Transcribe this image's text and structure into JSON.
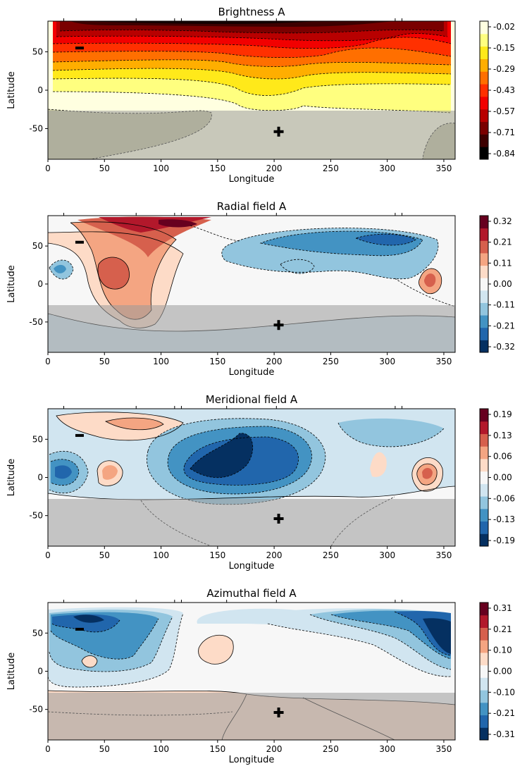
{
  "chart_data": [
    {
      "type": "heatmap",
      "title": "Brightness A",
      "xlabel": "Longitude",
      "ylabel": "Latitude",
      "xlim": [
        0,
        360
      ],
      "ylim": [
        -90,
        90
      ],
      "xticks": [
        0,
        50,
        100,
        150,
        200,
        250,
        300,
        350
      ],
      "yticks": [
        -50,
        0,
        50
      ],
      "colormap": "hot",
      "colorbar_ticks": [
        "-0.02",
        "-0.15",
        "-0.29",
        "-0.43",
        "-0.57",
        "-0.71",
        "-0.84"
      ],
      "colorbar_colors": [
        "#000000",
        "#3d0000",
        "#7a0000",
        "#b80000",
        "#f20000",
        "#ff3000",
        "#ff6f00",
        "#ffae00",
        "#ffe91a",
        "#ffff7f",
        "#ffffe0"
      ],
      "masked_below_latitude": -27,
      "mask_color": "#9a9a9a",
      "markers": [
        {
          "symbol": "−",
          "lon": 28,
          "lat": 55
        },
        {
          "symbol": "+",
          "lon": 204,
          "lat": -54
        }
      ],
      "top_tick_longitudes": [
        14,
        78,
        112,
        118,
        158,
        202,
        307,
        313
      ]
    },
    {
      "type": "heatmap",
      "title": "Radial field A",
      "xlabel": "Longitude",
      "ylabel": "Latitude",
      "xlim": [
        0,
        360
      ],
      "ylim": [
        -90,
        90
      ],
      "xticks": [
        0,
        50,
        100,
        150,
        200,
        250,
        300,
        350
      ],
      "yticks": [
        -50,
        0,
        50
      ],
      "colormap": "RdBu_r",
      "colorbar_ticks": [
        "0.32",
        "0.21",
        "0.11",
        "0.00",
        "-0.11",
        "-0.21",
        "-0.32"
      ],
      "colorbar_colors": [
        "#67001f",
        "#b2182b",
        "#d6604d",
        "#f4a582",
        "#fddbc7",
        "#f7f7f7",
        "#d1e5f0",
        "#92c5de",
        "#4393c3",
        "#2166ac",
        "#053061"
      ],
      "masked_below_latitude": -27,
      "mask_color": "#9a9a9a",
      "markers": [
        {
          "symbol": "−",
          "lon": 28,
          "lat": 55
        },
        {
          "symbol": "+",
          "lon": 204,
          "lat": -54
        }
      ],
      "top_tick_longitudes": [
        14,
        78,
        112,
        118,
        158,
        202,
        307,
        313
      ]
    },
    {
      "type": "heatmap",
      "title": "Meridional field A",
      "xlabel": "Longitude",
      "ylabel": "Latitude",
      "xlim": [
        0,
        360
      ],
      "ylim": [
        -90,
        90
      ],
      "xticks": [
        0,
        50,
        100,
        150,
        200,
        250,
        300,
        350
      ],
      "yticks": [
        -50,
        0,
        50
      ],
      "colormap": "RdBu_r",
      "colorbar_ticks": [
        "0.19",
        "0.13",
        "0.06",
        "0.00",
        "-0.06",
        "-0.13",
        "-0.19"
      ],
      "colorbar_colors": [
        "#67001f",
        "#b2182b",
        "#d6604d",
        "#f4a582",
        "#fddbc7",
        "#f7f7f7",
        "#d1e5f0",
        "#92c5de",
        "#4393c3",
        "#2166ac",
        "#053061"
      ],
      "masked_below_latitude": -27,
      "mask_color": "#9a9a9a",
      "markers": [
        {
          "symbol": "−",
          "lon": 28,
          "lat": 55
        },
        {
          "symbol": "+",
          "lon": 204,
          "lat": -54
        }
      ],
      "top_tick_longitudes": [
        14,
        78,
        112,
        118,
        158,
        202,
        307,
        313
      ]
    },
    {
      "type": "heatmap",
      "title": "Azimuthal field A",
      "xlabel": "Longitude",
      "ylabel": "Latitude",
      "xlim": [
        0,
        360
      ],
      "ylim": [
        -90,
        90
      ],
      "xticks": [
        0,
        50,
        100,
        150,
        200,
        250,
        300,
        350
      ],
      "yticks": [
        -50,
        0,
        50
      ],
      "colormap": "RdBu_r",
      "colorbar_ticks": [
        "0.31",
        "0.21",
        "0.10",
        "0.00",
        "-0.10",
        "-0.21",
        "-0.31"
      ],
      "colorbar_colors": [
        "#67001f",
        "#b2182b",
        "#d6604d",
        "#f4a582",
        "#fddbc7",
        "#f7f7f7",
        "#d1e5f0",
        "#92c5de",
        "#4393c3",
        "#2166ac",
        "#053061"
      ],
      "masked_below_latitude": -27,
      "mask_color": "#9a9a9a",
      "markers": [
        {
          "symbol": "−",
          "lon": 28,
          "lat": 55
        },
        {
          "symbol": "+",
          "lon": 204,
          "lat": -54
        }
      ],
      "top_tick_longitudes": [
        14,
        78,
        112,
        118,
        158,
        202,
        307,
        313
      ]
    }
  ]
}
